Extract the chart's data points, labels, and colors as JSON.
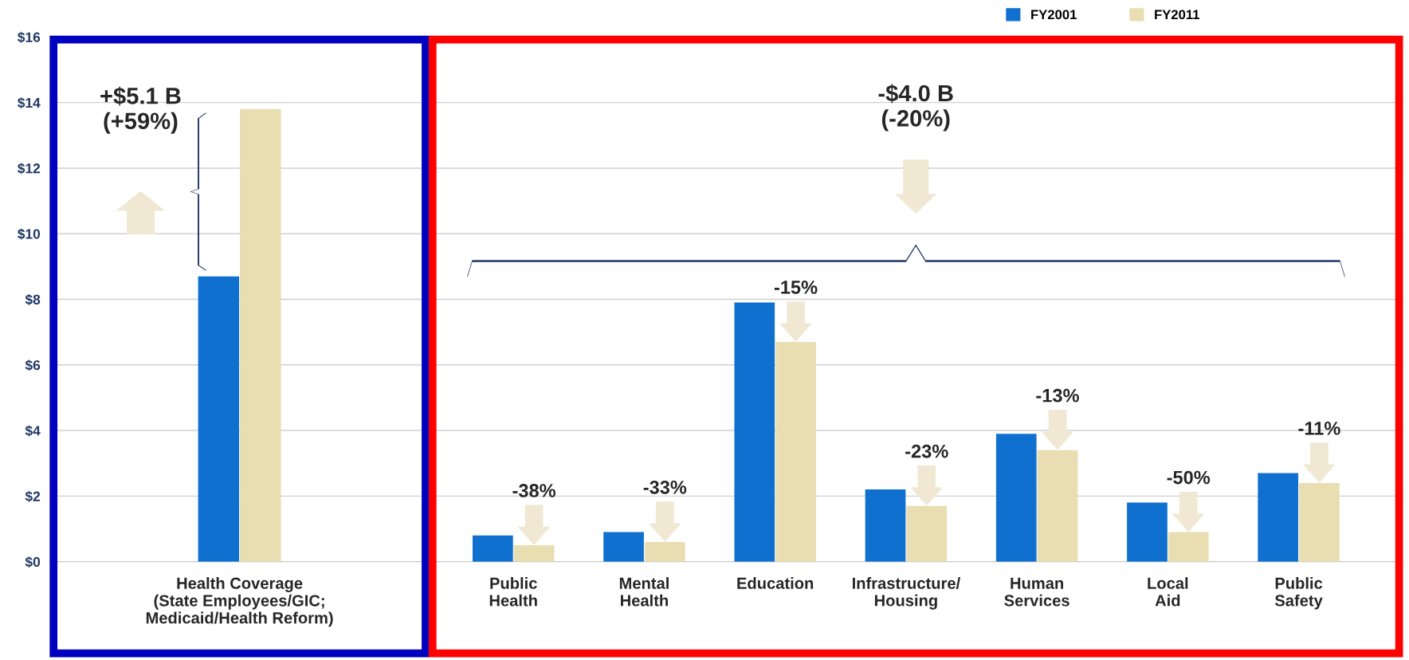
{
  "chart_data": [
    {
      "type": "bar",
      "categories": [
        "Health Coverage\n(State Employees/GIC;\nMedicaid/Health Reform)"
      ],
      "series": [
        {
          "name": "FY2001",
          "color": "#0f70d0",
          "values": [
            8.7
          ]
        },
        {
          "name": "FY2011",
          "color": "#e9ddb2",
          "values": [
            13.8
          ]
        }
      ],
      "ylim": [
        0,
        16
      ],
      "yticks": [
        {
          "value": 0,
          "label": "$0"
        },
        {
          "value": 2,
          "label": "$2"
        },
        {
          "value": 4,
          "label": "$4"
        },
        {
          "value": 6,
          "label": "$6"
        },
        {
          "value": 8,
          "label": "$8"
        },
        {
          "value": 10,
          "label": "$10"
        },
        {
          "value": 12,
          "label": "$12"
        },
        {
          "value": 14,
          "label": "$14"
        },
        {
          "value": 16,
          "label": "$16"
        }
      ],
      "grid": "y",
      "legend": "top right",
      "annotations": [
        "+$5.1 B\n(+59%)"
      ]
    },
    {
      "type": "bar",
      "categories": [
        "Public\nHealth",
        "Mental\nHealth",
        "Education",
        "Infrastructure/\nHousing",
        "Human\nServices",
        "Local\nAid",
        "Public\nSafety"
      ],
      "series": [
        {
          "color": "#0f70d0",
          "values": [
            0.8,
            0.9,
            7.9,
            2.2,
            3.9,
            1.8,
            2.7
          ]
        },
        {
          "color": "#e9ddb2",
          "values": [
            0.5,
            0.6,
            6.7,
            1.7,
            3.4,
            0.9,
            2.4
          ]
        }
      ],
      "ylim": [
        0,
        16
      ],
      "yticks": [
        0,
        2,
        4,
        6,
        8,
        10,
        12,
        14,
        16
      ],
      "tick_labels": "x",
      "grid": "y",
      "annotations": [
        "-$4.0 B\n(-20%)",
        {
          "text": "-38%",
          "x": "Public\nHealth",
          "y": 0.5
        },
        {
          "text": "-33%",
          "x": "Mental\nHealth",
          "y": 0.6
        },
        {
          "text": "-15%",
          "x": "Education",
          "y": 6.7
        },
        {
          "text": "-23%",
          "x": "Infrastructure/\nHousing",
          "y": 1.7
        },
        {
          "text": "-13%",
          "x": "Human\nServices",
          "y": 3.4
        },
        {
          "text": "-50%",
          "x": "Local\nAid",
          "y": 0.9
        },
        {
          "text": "-11%",
          "x": "Public\nSafety",
          "y": 2.4
        }
      ]
    }
  ]
}
